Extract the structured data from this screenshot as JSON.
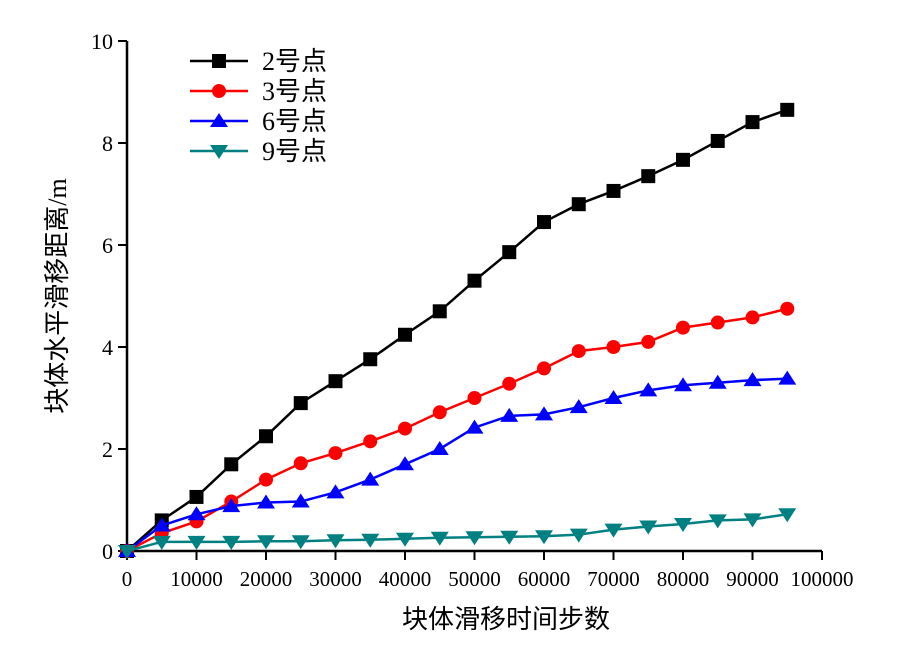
{
  "chart_data": {
    "type": "line",
    "title": "",
    "xlabel": "块体滑移时间步数",
    "ylabel": "块体水平滑移距离/m",
    "xlim": [
      0,
      100000
    ],
    "ylim": [
      0,
      10
    ],
    "xticks": [
      0,
      10000,
      20000,
      30000,
      40000,
      50000,
      60000,
      70000,
      80000,
      90000,
      100000
    ],
    "xtick_labels": [
      "0",
      "10000",
      "20000",
      "30000",
      "40000",
      "50000",
      "60000",
      "70000",
      "80000",
      "90000",
      "100000"
    ],
    "yticks": [
      0,
      2,
      4,
      6,
      8,
      10
    ],
    "ytick_labels": [
      "0",
      "2",
      "4",
      "6",
      "8",
      "10"
    ],
    "grid": false,
    "legend_position": "top-left",
    "x": [
      0,
      5000,
      10000,
      15000,
      20000,
      25000,
      30000,
      35000,
      40000,
      45000,
      50000,
      55000,
      60000,
      65000,
      70000,
      75000,
      80000,
      85000,
      90000,
      95000
    ],
    "series": [
      {
        "name": "2号点",
        "color": "#000000",
        "marker": "square",
        "values": [
          0,
          0.6,
          1.06,
          1.7,
          2.25,
          2.9,
          3.33,
          3.76,
          4.24,
          4.7,
          5.3,
          5.86,
          6.45,
          6.8,
          7.06,
          7.35,
          7.67,
          8.04,
          8.41,
          8.65
        ]
      },
      {
        "name": "3号点",
        "color": "#ff0000",
        "marker": "circle",
        "values": [
          0,
          0.35,
          0.58,
          0.97,
          1.4,
          1.72,
          1.92,
          2.15,
          2.4,
          2.72,
          3.0,
          3.28,
          3.58,
          3.92,
          4.0,
          4.1,
          4.38,
          4.48,
          4.58,
          4.75
        ]
      },
      {
        "name": "6号点",
        "color": "#0000ff",
        "marker": "triangle-up",
        "values": [
          0,
          0.5,
          0.72,
          0.88,
          0.95,
          0.97,
          1.15,
          1.4,
          1.7,
          2.0,
          2.42,
          2.65,
          2.68,
          2.82,
          3.0,
          3.15,
          3.25,
          3.3,
          3.35,
          3.38
        ]
      },
      {
        "name": "9号点",
        "color": "#008080",
        "marker": "triangle-down",
        "values": [
          0,
          0.18,
          0.18,
          0.18,
          0.19,
          0.19,
          0.21,
          0.22,
          0.24,
          0.26,
          0.27,
          0.28,
          0.29,
          0.32,
          0.42,
          0.48,
          0.53,
          0.6,
          0.62,
          0.72
        ]
      }
    ]
  }
}
